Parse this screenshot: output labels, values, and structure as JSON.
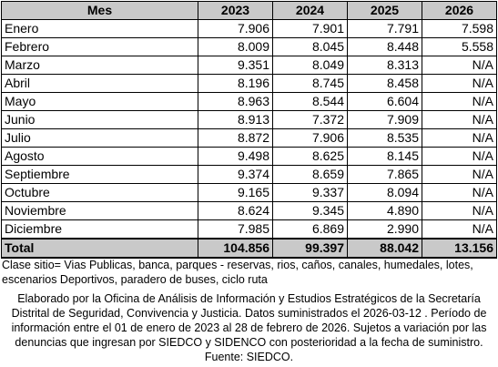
{
  "table": {
    "headers": [
      "Mes",
      "2023",
      "2024",
      "2025",
      "2026"
    ],
    "rows": [
      [
        "Enero",
        "7.906",
        "7.901",
        "7.791",
        "7.598"
      ],
      [
        "Febrero",
        "8.009",
        "8.045",
        "8.448",
        "5.558"
      ],
      [
        "Marzo",
        "9.351",
        "8.049",
        "8.313",
        "N/A"
      ],
      [
        "Abril",
        "8.196",
        "8.745",
        "8.458",
        "N/A"
      ],
      [
        "Mayo",
        "8.963",
        "8.544",
        "6.604",
        "N/A"
      ],
      [
        "Junio",
        "8.913",
        "7.372",
        "7.909",
        "N/A"
      ],
      [
        "Julio",
        "8.872",
        "7.906",
        "8.535",
        "N/A"
      ],
      [
        "Agosto",
        "9.498",
        "8.625",
        "8.145",
        "N/A"
      ],
      [
        "Septiembre",
        "9.374",
        "8.659",
        "7.865",
        "N/A"
      ],
      [
        "Octubre",
        "9.165",
        "9.337",
        "8.094",
        "N/A"
      ],
      [
        "Noviembre",
        "8.624",
        "9.345",
        "4.890",
        "N/A"
      ],
      [
        "Diciembre",
        "7.985",
        "6.869",
        "2.990",
        "N/A"
      ]
    ],
    "total": [
      "Total",
      "104.856",
      "99.397",
      "88.042",
      "13.156"
    ]
  },
  "note": {
    "line1": "Clase sitio= Vias Publicas, banca, parques - reservas, rios, caños, canales, humedales, lotes,",
    "line2": "escenarios Deportivos, paradero de buses, ciclo ruta"
  },
  "description": [
    "Elaborado por la Oficina de Análisis de Información y Estudios Estratégicos de la Secretaría",
    "Distrital de Seguridad, Convivencia y Justicia. Datos suministrados el 2026-03-12 . Período de",
    "información entre el 01 de enero de 2023 al 28 de febrero de 2026. Sujetos a variación por las",
    "denuncias que ingresan por SIEDCO y SIDENCO con posterioridad a la fecha de suministro.",
    "Fuente: SIEDCO."
  ]
}
